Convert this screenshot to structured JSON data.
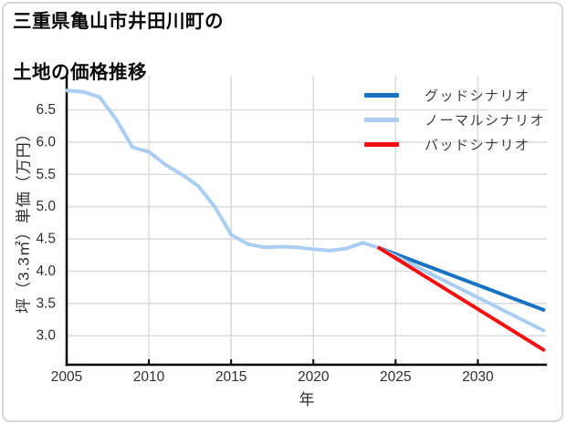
{
  "title": {
    "line1": "三重県亀山市井田川町の",
    "line2": "土地の価格推移"
  },
  "colors": {
    "good": "#1673c4",
    "normal": "#a9cef2",
    "bad": "#f60d0d",
    "grid": "#dcdcdc",
    "axis": "#000000",
    "tick_text": "#2f2f2f",
    "background": "#ffffff",
    "card_border": "#d6d6d6"
  },
  "legend": {
    "items": [
      {
        "label": "グッドシナリオ",
        "color": "#1673c4"
      },
      {
        "label": "ノーマルシナリオ",
        "color": "#a9cef2"
      },
      {
        "label": "バッドシナリオ",
        "color": "#f60d0d"
      }
    ]
  },
  "chart_data": {
    "type": "line",
    "title": "三重県亀山市井田川町の土地の価格推移",
    "xlabel": "年",
    "ylabel": "坪（3.3㎡）単価（万円）",
    "xlim": [
      2005,
      2034.2
    ],
    "ylim": [
      2.55,
      7.03
    ],
    "xticks": [
      2005,
      2010,
      2015,
      2020,
      2025,
      2030
    ],
    "yticks": [
      3.0,
      3.5,
      4.0,
      4.5,
      5.0,
      5.5,
      6.0,
      6.5
    ],
    "ytick_labels": [
      "3.0",
      "3.5",
      "4.0",
      "4.5",
      "5.0",
      "5.5",
      "6.0",
      "6.5"
    ],
    "grid": true,
    "legend_position": "upper right",
    "series": [
      {
        "id": "history",
        "label": "",
        "color": "#a9cef2",
        "x": [
          2005,
          2006,
          2007,
          2008,
          2009,
          2010,
          2011,
          2012,
          2013,
          2014,
          2015,
          2016,
          2017,
          2018,
          2019,
          2020,
          2021,
          2022,
          2023,
          2024
        ],
        "y": [
          6.8,
          6.78,
          6.7,
          6.36,
          5.92,
          5.85,
          5.65,
          5.5,
          5.32,
          5.0,
          4.57,
          4.42,
          4.37,
          4.38,
          4.37,
          4.34,
          4.32,
          4.35,
          4.44,
          4.36
        ]
      },
      {
        "id": "good",
        "label": "グッドシナリオ",
        "color": "#1673c4",
        "x": [
          2024,
          2034
        ],
        "y": [
          4.36,
          3.4
        ]
      },
      {
        "id": "normal",
        "label": "ノーマルシナリオ",
        "color": "#a9cef2",
        "x": [
          2024,
          2034
        ],
        "y": [
          4.36,
          3.08
        ]
      },
      {
        "id": "bad",
        "label": "バッドシナリオ",
        "color": "#f60d0d",
        "x": [
          2024,
          2034
        ],
        "y": [
          4.36,
          2.78
        ]
      }
    ]
  }
}
